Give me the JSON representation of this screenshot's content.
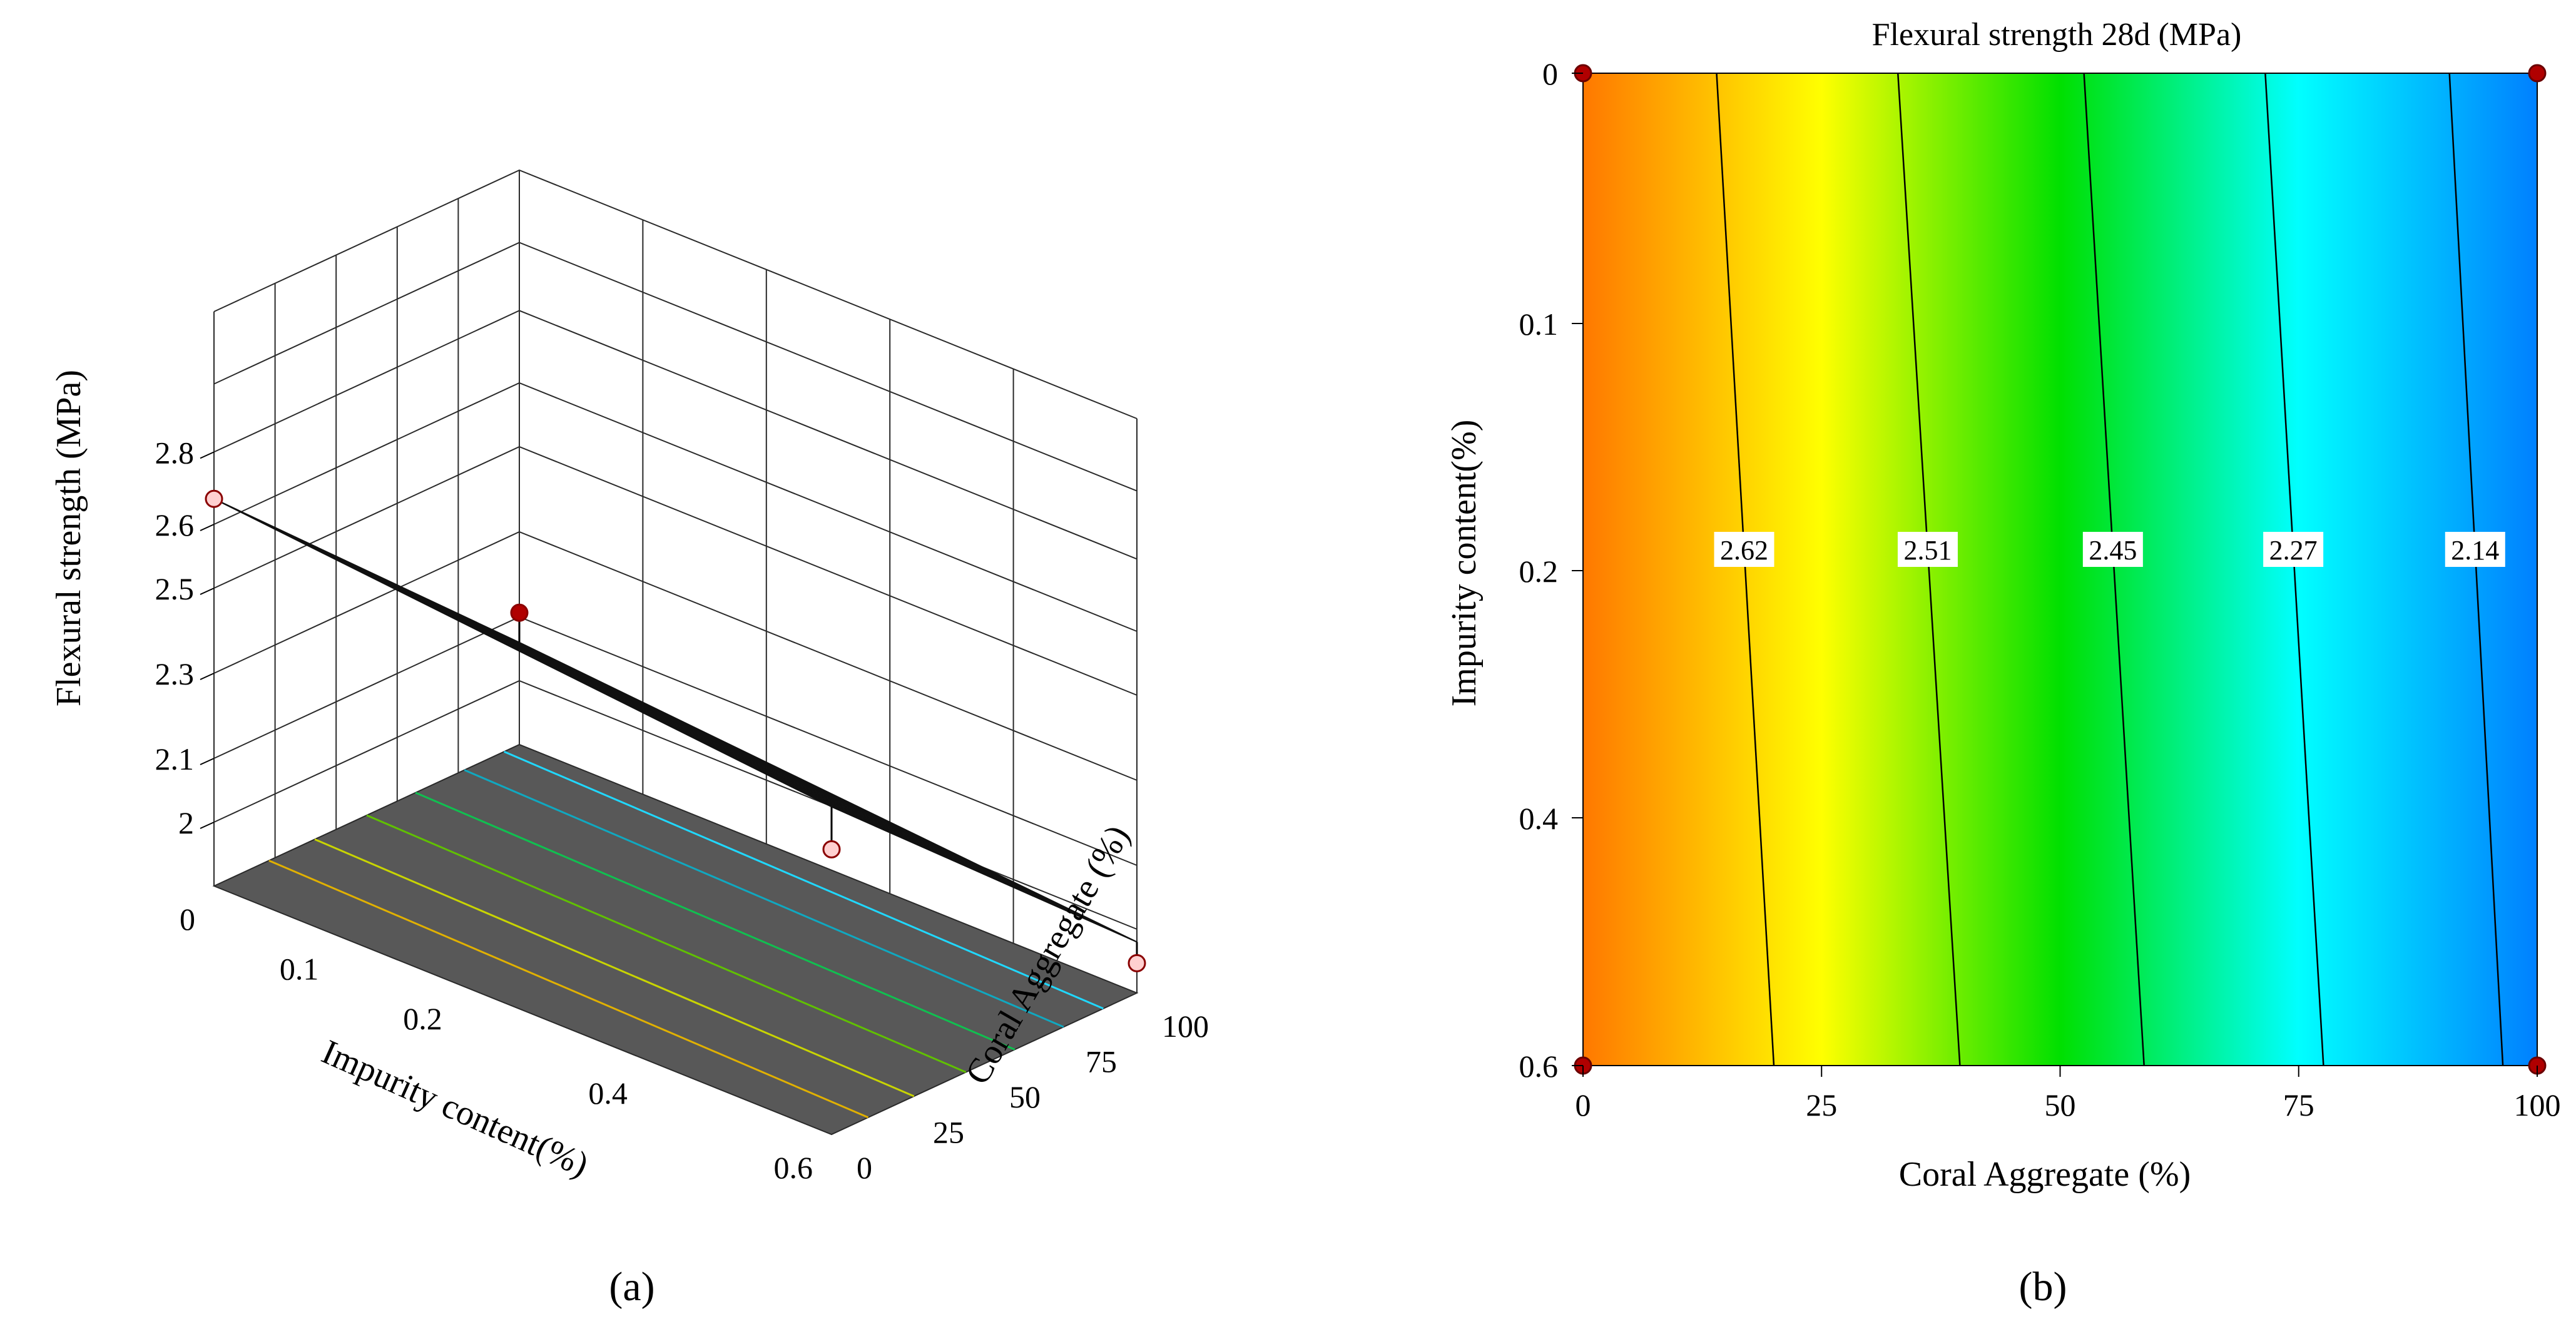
{
  "chart_data": [
    {
      "type": "surface",
      "panel_label": "(a)",
      "zlabel": "Flexural strength (MPa)",
      "xlabel": "Impurity content(%)",
      "ylabel": "Coral Aggregate (%)",
      "z_ticks": [
        "2",
        "2.1",
        "2.3",
        "2.5",
        "2.6",
        "2.8"
      ],
      "x_ticks": [
        "0",
        "0.1",
        "0.2",
        "0.4",
        "0.6"
      ],
      "y_ticks": [
        "0",
        "25",
        "50",
        "75",
        "100"
      ],
      "x_range": [
        0,
        0.6
      ],
      "y_range": [
        0,
        100
      ],
      "z_range": [
        2.0,
        2.8
      ],
      "surface_corners": [
        {
          "impurity": 0,
          "coral": 0,
          "strength": 2.76
        },
        {
          "impurity": 0.6,
          "coral": 0,
          "strength": 2.62
        },
        {
          "impurity": 0,
          "coral": 100,
          "strength": 2.09
        },
        {
          "impurity": 0.6,
          "coral": 100,
          "strength": 1.97
        }
      ],
      "design_points": [
        {
          "impurity": 0,
          "coral": 0,
          "strength": 2.76
        },
        {
          "impurity": 0.6,
          "coral": 0,
          "strength": 2.52
        },
        {
          "impurity": 0,
          "coral": 100,
          "strength": 2.16
        },
        {
          "impurity": 0.6,
          "coral": 100,
          "strength": 1.92
        }
      ],
      "colormap": [
        "#ff5a00",
        "#ffff00",
        "#00e000",
        "#00ffff",
        "#0080ff"
      ],
      "floor_color": "#585858",
      "grid": true
    },
    {
      "type": "contour",
      "panel_label": "(b)",
      "title": "Flexural strength  28d (MPa)",
      "xlabel": "Coral Aggregate  (%)",
      "ylabel": "Impurity content(%)",
      "x_ticks": [
        "0",
        "25",
        "50",
        "75",
        "100"
      ],
      "y_ticks": [
        "0",
        "0.1",
        "0.2",
        "0.4",
        "0.6"
      ],
      "x_range": [
        0,
        100
      ],
      "y_range": [
        0,
        0.6
      ],
      "contours": [
        {
          "label": "2.62",
          "coral_at_top": 14,
          "coral_at_bottom": 20
        },
        {
          "label": "2.51",
          "coral_at_top": 33,
          "coral_at_bottom": 39.5
        },
        {
          "label": "2.45",
          "coral_at_top": 52.5,
          "coral_at_bottom": 58.8
        },
        {
          "label": "2.27",
          "coral_at_top": 71.5,
          "coral_at_bottom": 77.6
        },
        {
          "label": "2.14",
          "coral_at_top": 90.8,
          "coral_at_bottom": 96.4
        }
      ],
      "colormap": [
        "#ff7800",
        "#ffff00",
        "#00e000",
        "#00ffff",
        "#0080ff"
      ],
      "design_points": [
        {
          "coral": 0,
          "impurity": 0
        },
        {
          "coral": 100,
          "impurity": 0
        },
        {
          "coral": 0,
          "impurity": 0.6
        },
        {
          "coral": 100,
          "impurity": 0.6
        }
      ]
    }
  ]
}
